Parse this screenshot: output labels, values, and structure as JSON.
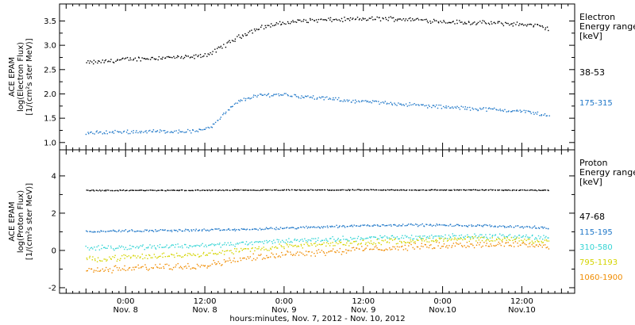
{
  "chart_data": [
    {
      "type": "scatter",
      "ylabel_lines": [
        "ACE EPAM",
        "log(Electron Flux)",
        "[1/(cm²s ster MeV)]"
      ],
      "ylim": [
        0.85,
        3.85
      ],
      "yticks": [
        1.0,
        1.5,
        2.0,
        2.5,
        3.0,
        3.5
      ],
      "ytick_labels": [
        "1.0",
        "1.5",
        "2.0",
        "2.5",
        "3.0",
        "3.5"
      ],
      "legend_title_lines": [
        "Electron",
        "Energy range",
        "[keV]"
      ],
      "series": [
        {
          "name": "38-53",
          "color": "#000000",
          "x": [
            "2012-11-07 18:00",
            "2012-11-07 21:00",
            "2012-11-08 00:00",
            "2012-11-08 03:00",
            "2012-11-08 06:00",
            "2012-11-08 09:00",
            "2012-11-08 11:00",
            "2012-11-08 13:00",
            "2012-11-08 15:00",
            "2012-11-08 17:00",
            "2012-11-08 19:00",
            "2012-11-08 21:00",
            "2012-11-09 00:00",
            "2012-11-09 03:00",
            "2012-11-09 06:00",
            "2012-11-09 09:00",
            "2012-11-09 12:00",
            "2012-11-09 15:00",
            "2012-11-09 18:00",
            "2012-11-09 21:00",
            "2012-11-10 00:00",
            "2012-11-10 03:00",
            "2012-11-10 06:00",
            "2012-11-10 09:00",
            "2012-11-10 12:00",
            "2012-11-10 14:00",
            "2012-11-10 16:00"
          ],
          "y": [
            2.65,
            2.68,
            2.72,
            2.74,
            2.76,
            2.76,
            2.78,
            2.85,
            3.02,
            3.18,
            3.3,
            3.4,
            3.47,
            3.52,
            3.53,
            3.54,
            3.55,
            3.56,
            3.55,
            3.53,
            3.5,
            3.48,
            3.47,
            3.46,
            3.44,
            3.42,
            3.35
          ]
        },
        {
          "name": "175-315",
          "color": "#1f77c8",
          "x": [
            "2012-11-07 18:00",
            "2012-11-07 21:00",
            "2012-11-08 00:00",
            "2012-11-08 03:00",
            "2012-11-08 06:00",
            "2012-11-08 09:00",
            "2012-11-08 11:00",
            "2012-11-08 13:00",
            "2012-11-08 15:00",
            "2012-11-08 17:00",
            "2012-11-08 19:00",
            "2012-11-08 21:00",
            "2012-11-09 00:00",
            "2012-11-09 03:00",
            "2012-11-09 06:00",
            "2012-11-09 09:00",
            "2012-11-09 12:00",
            "2012-11-09 15:00",
            "2012-11-09 18:00",
            "2012-11-09 21:00",
            "2012-11-10 00:00",
            "2012-11-10 03:00",
            "2012-11-10 06:00",
            "2012-11-10 09:00",
            "2012-11-10 12:00",
            "2012-11-10 14:00",
            "2012-11-10 16:00"
          ],
          "y": [
            1.2,
            1.22,
            1.23,
            1.24,
            1.24,
            1.24,
            1.25,
            1.35,
            1.62,
            1.85,
            1.95,
            1.99,
            2.0,
            1.95,
            1.92,
            1.88,
            1.85,
            1.83,
            1.8,
            1.77,
            1.74,
            1.72,
            1.7,
            1.68,
            1.65,
            1.62,
            1.55
          ]
        }
      ]
    },
    {
      "type": "scatter",
      "ylabel_lines": [
        "ACE EPAM",
        "log(Proton Flux)",
        "[1/(cm²s ster MeV)]"
      ],
      "ylim": [
        -2.3,
        5.4
      ],
      "yticks": [
        -2,
        0,
        2,
        4
      ],
      "ytick_labels": [
        "-2",
        "0",
        "2",
        "4"
      ],
      "legend_title_lines": [
        "Proton",
        "Energy range",
        "[keV]"
      ],
      "series": [
        {
          "name": "47-68",
          "color": "#000000",
          "x": [
            "2012-11-07 18:00",
            "2012-11-08 06:00",
            "2012-11-08 18:00",
            "2012-11-09 06:00",
            "2012-11-09 18:00",
            "2012-11-10 06:00",
            "2012-11-10 16:00"
          ],
          "y": [
            3.25,
            3.25,
            3.26,
            3.27,
            3.27,
            3.27,
            3.26
          ]
        },
        {
          "name": "115-195",
          "color": "#1f77c8",
          "x": [
            "2012-11-07 18:00",
            "2012-11-08 00:00",
            "2012-11-08 06:00",
            "2012-11-08 12:00",
            "2012-11-08 18:00",
            "2012-11-09 00:00",
            "2012-11-09 06:00",
            "2012-11-09 12:00",
            "2012-11-09 18:00",
            "2012-11-10 00:00",
            "2012-11-10 06:00",
            "2012-11-10 12:00",
            "2012-11-10 16:00"
          ],
          "y": [
            1.05,
            1.08,
            1.1,
            1.12,
            1.15,
            1.22,
            1.3,
            1.36,
            1.4,
            1.38,
            1.35,
            1.3,
            1.22
          ]
        },
        {
          "name": "310-580",
          "color": "#33d4d4",
          "x": [
            "2012-11-07 18:00",
            "2012-11-08 00:00",
            "2012-11-08 06:00",
            "2012-11-08 12:00",
            "2012-11-08 18:00",
            "2012-11-09 00:00",
            "2012-11-09 06:00",
            "2012-11-09 12:00",
            "2012-11-09 18:00",
            "2012-11-10 00:00",
            "2012-11-10 06:00",
            "2012-11-10 12:00",
            "2012-11-10 16:00"
          ],
          "y": [
            0.15,
            0.2,
            0.25,
            0.3,
            0.4,
            0.55,
            0.62,
            0.68,
            0.75,
            0.78,
            0.8,
            0.78,
            0.7
          ]
        },
        {
          "name": "795-1193",
          "color": "#d4d400",
          "x": [
            "2012-11-07 18:00",
            "2012-11-08 00:00",
            "2012-11-08 06:00",
            "2012-11-08 12:00",
            "2012-11-08 18:00",
            "2012-11-09 00:00",
            "2012-11-09 06:00",
            "2012-11-09 12:00",
            "2012-11-09 18:00",
            "2012-11-10 00:00",
            "2012-11-10 06:00",
            "2012-11-10 12:00",
            "2012-11-10 16:00"
          ],
          "y": [
            -0.45,
            -0.35,
            -0.25,
            -0.15,
            0.05,
            0.25,
            0.35,
            0.45,
            0.55,
            0.6,
            0.62,
            0.6,
            0.5
          ]
        },
        {
          "name": "1060-1900",
          "color": "#f08c00",
          "x": [
            "2012-11-07 18:00",
            "2012-11-08 00:00",
            "2012-11-08 06:00",
            "2012-11-08 12:00",
            "2012-11-08 18:00",
            "2012-11-09 00:00",
            "2012-11-09 06:00",
            "2012-11-09 12:00",
            "2012-11-09 18:00",
            "2012-11-10 00:00",
            "2012-11-10 06:00",
            "2012-11-10 12:00",
            "2012-11-10 16:00"
          ],
          "y": [
            -1.05,
            -0.95,
            -0.85,
            -0.75,
            -0.4,
            -0.15,
            -0.05,
            0.1,
            0.2,
            0.3,
            0.35,
            0.35,
            0.25
          ]
        }
      ]
    }
  ],
  "x_axis": {
    "xlim": [
      "2012-11-07 14:00",
      "2012-11-10 20:00"
    ],
    "major_ticks": [
      "2012-11-08 00:00",
      "2012-11-08 12:00",
      "2012-11-09 00:00",
      "2012-11-09 12:00",
      "2012-11-10 00:00",
      "2012-11-10 12:00"
    ],
    "tick_labels": [
      {
        "time": "0:00",
        "date": "Nov. 8"
      },
      {
        "time": "12:00",
        "date": "Nov. 8"
      },
      {
        "time": "0:00",
        "date": "Nov. 9"
      },
      {
        "time": "12:00",
        "date": "Nov. 9"
      },
      {
        "time": "0:00",
        "date": "Nov.10"
      },
      {
        "time": "12:00",
        "date": "Nov.10"
      }
    ],
    "label": "hours:minutes, Nov. 7, 2012 - Nov. 10, 2012"
  }
}
